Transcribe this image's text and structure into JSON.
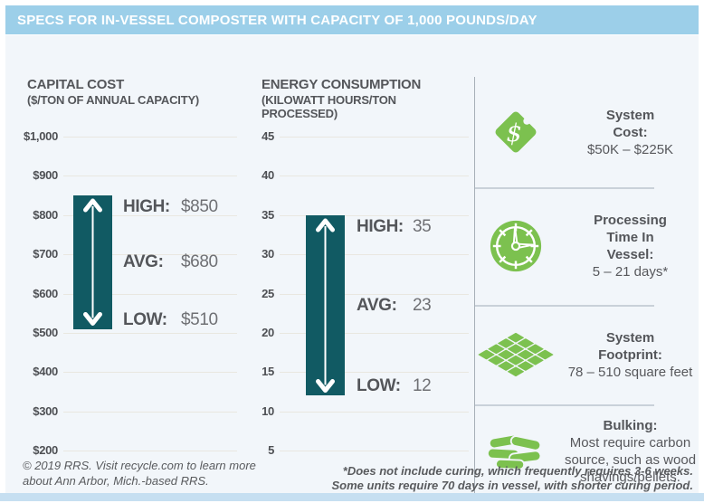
{
  "header": {
    "title": "SPECS FOR IN-VESSEL COMPOSTER WITH CAPACITY OF 1,000 POUNDS/DAY"
  },
  "chart_data": [
    {
      "type": "bar",
      "title": "CAPITAL COST",
      "subtitle": "($/TON OF ANNUAL CAPACITY)",
      "axis_min": 200,
      "axis_max": 1000,
      "tick_labels": [
        "$1,000",
        "$900",
        "$800",
        "$700",
        "$600",
        "$500",
        "$400",
        "$300",
        "$200"
      ],
      "tick_values": [
        1000,
        900,
        800,
        700,
        600,
        500,
        400,
        300,
        200
      ],
      "bar": {
        "low": 510,
        "high": 850
      },
      "stats": [
        {
          "name": "HIGH:",
          "value": "$850"
        },
        {
          "name": "AVG:",
          "value": "$680"
        },
        {
          "name": "LOW:",
          "value": "$510"
        }
      ],
      "grid": true,
      "legend_position": "none"
    },
    {
      "type": "bar",
      "title": "ENERGY CONSUMPTION",
      "subtitle": "(KILOWATT HOURS/TON PROCESSED)",
      "axis_min": 5,
      "axis_max": 45,
      "tick_labels": [
        "45",
        "40",
        "35",
        "30",
        "25",
        "20",
        "15",
        "10",
        "5"
      ],
      "tick_values": [
        45,
        40,
        35,
        30,
        25,
        20,
        15,
        10,
        5
      ],
      "bar": {
        "low": 12,
        "high": 35
      },
      "stats": [
        {
          "name": "HIGH:",
          "value": "35"
        },
        {
          "name": "AVG:",
          "value": "23"
        },
        {
          "name": "LOW:",
          "value": "12"
        }
      ],
      "grid": true,
      "legend_position": "none"
    }
  ],
  "sidebar": {
    "items": [
      {
        "icon": "price-tag-icon",
        "title": "System Cost:",
        "value": "$50K – $225K"
      },
      {
        "icon": "clock-icon",
        "title": "Processing Time In Vessel:",
        "value": "5 – 21 days*"
      },
      {
        "icon": "footprint-grid-icon",
        "title": "System Footprint:",
        "value": "78 – 510 square feet"
      },
      {
        "icon": "wood-shavings-icon",
        "title": "Bulking:",
        "value": "Most require carbon source, such as wood shavings/pellets."
      }
    ]
  },
  "footer": {
    "line1": "© 2019 RRS. Visit recycle.com to learn more",
    "line2": "about Ann Arbor, Mich.-based RRS."
  },
  "footnote": {
    "line1": "*Does not include curing, which frequently requires 3-6 weeks.",
    "line2": "Some units require 70 days in vessel, with shorter curing period."
  },
  "colors": {
    "header_bg": "#9ccfe9",
    "bottom_strip": "#c6dff1",
    "content_bg": "#f2f6fa",
    "bar_teal": "#115a63",
    "icon_green": "#7cc14f",
    "grid_line": "#e9e7e0",
    "text_dark": "#54565a",
    "text_value": "#6f7074"
  }
}
